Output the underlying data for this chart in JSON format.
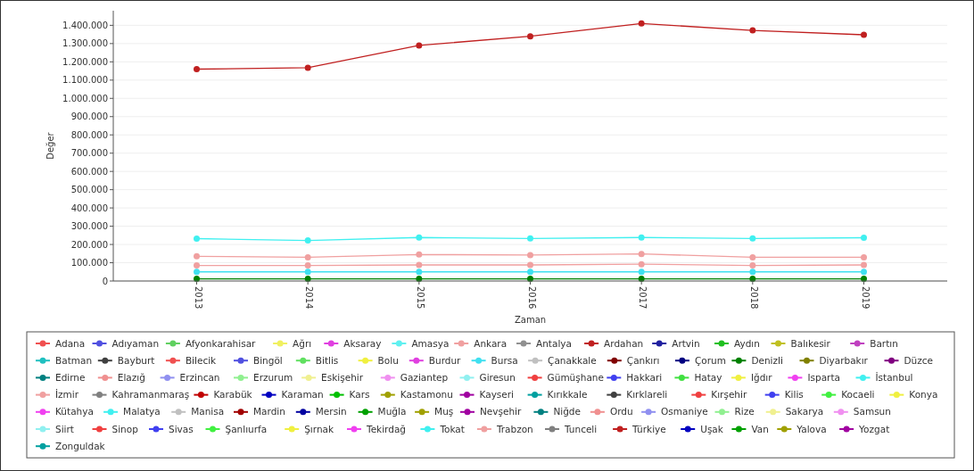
{
  "chart_data": {
    "type": "line",
    "xlabel": "Zaman",
    "ylabel": "Değer",
    "categories": [
      "2013",
      "2014",
      "2015",
      "2016",
      "2017",
      "2018",
      "2019"
    ],
    "ylim": [
      0,
      1480000
    ],
    "yticks": [
      0,
      {
        "value": 100000,
        "label": "100.000"
      },
      {
        "value": 200000,
        "label": "200.000"
      },
      {
        "value": 300000,
        "label": "300.000"
      },
      {
        "value": 400000,
        "label": "400.000"
      },
      {
        "value": 500000,
        "label": "500.000"
      },
      {
        "value": 600000,
        "label": "600.000"
      },
      {
        "value": 700000,
        "label": "700.000"
      },
      {
        "value": 800000,
        "label": "800.000"
      },
      {
        "value": 900000,
        "label": "900.000"
      },
      {
        "value": 1000000,
        "label": "1.000.000"
      },
      {
        "value": 1100000,
        "label": "1.100.000"
      },
      {
        "value": 1200000,
        "label": "1.200.000"
      },
      {
        "value": 1300000,
        "label": "1.300.000"
      },
      {
        "value": 1400000,
        "label": "1.400.000"
      }
    ],
    "grid": "y",
    "legend": "bottom",
    "marker": "circle",
    "series": [
      {
        "name": "Adana",
        "color": "#f05050",
        "values": [
          null,
          null,
          null,
          null,
          null,
          null,
          null
        ]
      },
      {
        "name": "Adıyaman",
        "color": "#5050e0",
        "values": [
          null,
          null,
          null,
          null,
          null,
          null,
          null
        ]
      },
      {
        "name": "Afyonkarahisar",
        "color": "#60d060",
        "values": [
          null,
          null,
          null,
          null,
          null,
          null,
          null
        ]
      },
      {
        "name": "Ağrı",
        "color": "#f0f060",
        "values": [
          null,
          null,
          null,
          null,
          null,
          null,
          null
        ]
      },
      {
        "name": "Aksaray",
        "color": "#e040e0",
        "values": [
          null,
          null,
          null,
          null,
          null,
          null,
          null
        ]
      },
      {
        "name": "Amasya",
        "color": "#60f0f0",
        "values": [
          null,
          null,
          null,
          null,
          null,
          null,
          null
        ]
      },
      {
        "name": "Ankara",
        "color": "#f0a0a0",
        "values": [
          135000,
          130000,
          145000,
          142000,
          148000,
          130000,
          130000
        ]
      },
      {
        "name": "Antalya",
        "color": "#909090",
        "values": [
          null,
          null,
          null,
          null,
          null,
          null,
          null
        ]
      },
      {
        "name": "Ardahan",
        "color": "#c02020",
        "values": [
          null,
          null,
          null,
          null,
          null,
          null,
          null
        ]
      },
      {
        "name": "Artvin",
        "color": "#2020a0",
        "values": [
          null,
          null,
          null,
          null,
          null,
          null,
          null
        ]
      },
      {
        "name": "Aydın",
        "color": "#20c020",
        "values": [
          null,
          null,
          null,
          null,
          null,
          null,
          null
        ]
      },
      {
        "name": "Balıkesir",
        "color": "#c0c020",
        "values": [
          null,
          null,
          null,
          null,
          null,
          null,
          null
        ]
      },
      {
        "name": "Bartın",
        "color": "#c040c0",
        "values": [
          null,
          null,
          null,
          null,
          null,
          null,
          null
        ]
      },
      {
        "name": "Batman",
        "color": "#20c0c0",
        "values": [
          null,
          null,
          null,
          null,
          null,
          null,
          null
        ]
      },
      {
        "name": "Bayburt",
        "color": "#404040",
        "values": [
          null,
          null,
          null,
          null,
          null,
          null,
          null
        ]
      },
      {
        "name": "Bilecik",
        "color": "#f05050",
        "values": [
          null,
          null,
          null,
          null,
          null,
          null,
          null
        ]
      },
      {
        "name": "Bingöl",
        "color": "#5050e0",
        "values": [
          null,
          null,
          null,
          null,
          null,
          null,
          null
        ]
      },
      {
        "name": "Bitlis",
        "color": "#60e060",
        "values": [
          null,
          null,
          null,
          null,
          null,
          null,
          null
        ]
      },
      {
        "name": "Bolu",
        "color": "#f0f040",
        "values": [
          null,
          null,
          null,
          null,
          null,
          null,
          null
        ]
      },
      {
        "name": "Burdur",
        "color": "#e040e0",
        "values": [
          null,
          null,
          null,
          null,
          null,
          null,
          null
        ]
      },
      {
        "name": "Bursa",
        "color": "#40e0f0",
        "values": [
          50000,
          50000,
          50000,
          50000,
          50000,
          50000,
          50000
        ]
      },
      {
        "name": "Çanakkale",
        "color": "#c0c0c0",
        "values": [
          null,
          null,
          null,
          null,
          null,
          null,
          null
        ]
      },
      {
        "name": "Çankırı",
        "color": "#800000",
        "values": [
          null,
          null,
          null,
          null,
          null,
          null,
          null
        ]
      },
      {
        "name": "Çorum",
        "color": "#000080",
        "values": [
          null,
          null,
          null,
          null,
          null,
          null,
          null
        ]
      },
      {
        "name": "Denizli",
        "color": "#008000",
        "values": [
          12000,
          12000,
          12000,
          12000,
          12000,
          12000,
          12000
        ]
      },
      {
        "name": "Diyarbakır",
        "color": "#808000",
        "values": [
          null,
          null,
          null,
          null,
          null,
          null,
          null
        ]
      },
      {
        "name": "Düzce",
        "color": "#800080",
        "values": [
          null,
          null,
          null,
          null,
          null,
          null,
          null
        ]
      },
      {
        "name": "Edirne",
        "color": "#008080",
        "values": [
          null,
          null,
          null,
          null,
          null,
          null,
          null
        ]
      },
      {
        "name": "Elazığ",
        "color": "#f09090",
        "values": [
          null,
          null,
          null,
          null,
          null,
          null,
          null
        ]
      },
      {
        "name": "Erzincan",
        "color": "#9090f0",
        "values": [
          null,
          null,
          null,
          null,
          null,
          null,
          null
        ]
      },
      {
        "name": "Erzurum",
        "color": "#90f090",
        "values": [
          null,
          null,
          null,
          null,
          null,
          null,
          null
        ]
      },
      {
        "name": "Eskişehir",
        "color": "#f0f090",
        "values": [
          null,
          null,
          null,
          null,
          null,
          null,
          null
        ]
      },
      {
        "name": "Gaziantep",
        "color": "#f090f0",
        "values": [
          null,
          null,
          null,
          null,
          null,
          null,
          null
        ]
      },
      {
        "name": "Giresun",
        "color": "#90f0f0",
        "values": [
          null,
          null,
          null,
          null,
          null,
          null,
          null
        ]
      },
      {
        "name": "Gümüşhane",
        "color": "#f04040",
        "values": [
          null,
          null,
          null,
          null,
          null,
          null,
          null
        ]
      },
      {
        "name": "Hakkari",
        "color": "#4040f0",
        "values": [
          null,
          null,
          null,
          null,
          null,
          null,
          null
        ]
      },
      {
        "name": "Hatay",
        "color": "#40e040",
        "values": [
          null,
          null,
          null,
          null,
          null,
          null,
          null
        ]
      },
      {
        "name": "Iğdır",
        "color": "#f0f040",
        "values": [
          null,
          null,
          null,
          null,
          null,
          null,
          null
        ]
      },
      {
        "name": "Isparta",
        "color": "#f040f0",
        "values": [
          null,
          null,
          null,
          null,
          null,
          null,
          null
        ]
      },
      {
        "name": "İstanbul",
        "color": "#40f0f0",
        "values": [
          232000,
          222000,
          238000,
          233000,
          238000,
          233000,
          237000
        ]
      },
      {
        "name": "İzmir",
        "color": "#f0a0a0",
        "values": [
          85000,
          85000,
          88000,
          88000,
          92000,
          85000,
          88000
        ]
      },
      {
        "name": "Kahramanmaraş",
        "color": "#808080",
        "values": [
          null,
          null,
          null,
          null,
          null,
          null,
          null
        ]
      },
      {
        "name": "Karabük",
        "color": "#c00000",
        "values": [
          null,
          null,
          null,
          null,
          null,
          null,
          null
        ]
      },
      {
        "name": "Karaman",
        "color": "#0000c0",
        "values": [
          null,
          null,
          null,
          null,
          null,
          null,
          null
        ]
      },
      {
        "name": "Kars",
        "color": "#00c000",
        "values": [
          null,
          null,
          null,
          null,
          null,
          null,
          null
        ]
      },
      {
        "name": "Kastamonu",
        "color": "#a0a000",
        "values": [
          null,
          null,
          null,
          null,
          null,
          null,
          null
        ]
      },
      {
        "name": "Kayseri",
        "color": "#a000a0",
        "values": [
          null,
          null,
          null,
          null,
          null,
          null,
          null
        ]
      },
      {
        "name": "Kırıkkale",
        "color": "#00a0a0",
        "values": [
          null,
          null,
          null,
          null,
          null,
          null,
          null
        ]
      },
      {
        "name": "Kırklareli",
        "color": "#404040",
        "values": [
          null,
          null,
          null,
          null,
          null,
          null,
          null
        ]
      },
      {
        "name": "Kırşehir",
        "color": "#f04040",
        "values": [
          null,
          null,
          null,
          null,
          null,
          null,
          null
        ]
      },
      {
        "name": "Kilis",
        "color": "#4040f0",
        "values": [
          null,
          null,
          null,
          null,
          null,
          null,
          null
        ]
      },
      {
        "name": "Kocaeli",
        "color": "#40f040",
        "values": [
          null,
          null,
          null,
          null,
          null,
          null,
          null
        ]
      },
      {
        "name": "Konya",
        "color": "#f0f040",
        "values": [
          null,
          null,
          null,
          null,
          null,
          null,
          null
        ]
      },
      {
        "name": "Kütahya",
        "color": "#f040f0",
        "values": [
          null,
          null,
          null,
          null,
          null,
          null,
          null
        ]
      },
      {
        "name": "Malatya",
        "color": "#40f0f0",
        "values": [
          null,
          null,
          null,
          null,
          null,
          null,
          null
        ]
      },
      {
        "name": "Manisa",
        "color": "#c0c0c0",
        "values": [
          null,
          null,
          null,
          null,
          null,
          null,
          null
        ]
      },
      {
        "name": "Mardin",
        "color": "#a00000",
        "values": [
          null,
          null,
          null,
          null,
          null,
          null,
          null
        ]
      },
      {
        "name": "Mersin",
        "color": "#0000a0",
        "values": [
          null,
          null,
          null,
          null,
          null,
          null,
          null
        ]
      },
      {
        "name": "Muğla",
        "color": "#00a000",
        "values": [
          null,
          null,
          null,
          null,
          null,
          null,
          null
        ]
      },
      {
        "name": "Muş",
        "color": "#a0a000",
        "values": [
          null,
          null,
          null,
          null,
          null,
          null,
          null
        ]
      },
      {
        "name": "Nevşehir",
        "color": "#a000a0",
        "values": [
          null,
          null,
          null,
          null,
          null,
          null,
          null
        ]
      },
      {
        "name": "Niğde",
        "color": "#008080",
        "values": [
          null,
          null,
          null,
          null,
          null,
          null,
          null
        ]
      },
      {
        "name": "Ordu",
        "color": "#f09090",
        "values": [
          null,
          null,
          null,
          null,
          null,
          null,
          null
        ]
      },
      {
        "name": "Osmaniye",
        "color": "#9090f0",
        "values": [
          null,
          null,
          null,
          null,
          null,
          null,
          null
        ]
      },
      {
        "name": "Rize",
        "color": "#90f090",
        "values": [
          null,
          null,
          null,
          null,
          null,
          null,
          null
        ]
      },
      {
        "name": "Sakarya",
        "color": "#f0f090",
        "values": [
          null,
          null,
          null,
          null,
          null,
          null,
          null
        ]
      },
      {
        "name": "Samsun",
        "color": "#f090f0",
        "values": [
          null,
          null,
          null,
          null,
          null,
          null,
          null
        ]
      },
      {
        "name": "Siirt",
        "color": "#90f0f0",
        "values": [
          null,
          null,
          null,
          null,
          null,
          null,
          null
        ]
      },
      {
        "name": "Sinop",
        "color": "#f04040",
        "values": [
          null,
          null,
          null,
          null,
          null,
          null,
          null
        ]
      },
      {
        "name": "Sivas",
        "color": "#4040f0",
        "values": [
          null,
          null,
          null,
          null,
          null,
          null,
          null
        ]
      },
      {
        "name": "Şanlıurfa",
        "color": "#40f040",
        "values": [
          null,
          null,
          null,
          null,
          null,
          null,
          null
        ]
      },
      {
        "name": "Şırnak",
        "color": "#f0f040",
        "values": [
          null,
          null,
          null,
          null,
          null,
          null,
          null
        ]
      },
      {
        "name": "Tekirdağ",
        "color": "#f040f0",
        "values": [
          null,
          null,
          null,
          null,
          null,
          null,
          null
        ]
      },
      {
        "name": "Tokat",
        "color": "#40f0f0",
        "values": [
          null,
          null,
          null,
          null,
          null,
          null,
          null
        ]
      },
      {
        "name": "Trabzon",
        "color": "#f0a0a0",
        "values": [
          null,
          null,
          null,
          null,
          null,
          null,
          null
        ]
      },
      {
        "name": "Tunceli",
        "color": "#808080",
        "values": [
          null,
          null,
          null,
          null,
          null,
          null,
          null
        ]
      },
      {
        "name": "Türkiye",
        "color": "#c02020",
        "values": [
          1160000,
          1168000,
          1290000,
          1340000,
          1410000,
          1372000,
          1348000
        ]
      },
      {
        "name": "Uşak",
        "color": "#0000c0",
        "values": [
          null,
          null,
          null,
          null,
          null,
          null,
          null
        ]
      },
      {
        "name": "Van",
        "color": "#00a000",
        "values": [
          null,
          null,
          null,
          null,
          null,
          null,
          null
        ]
      },
      {
        "name": "Yalova",
        "color": "#a0a000",
        "values": [
          null,
          null,
          null,
          null,
          null,
          null,
          null
        ]
      },
      {
        "name": "Yozgat",
        "color": "#a000a0",
        "values": [
          null,
          null,
          null,
          null,
          null,
          null,
          null
        ]
      },
      {
        "name": "Zonguldak",
        "color": "#00a0a0",
        "values": [
          null,
          null,
          null,
          null,
          null,
          null,
          null
        ]
      }
    ]
  }
}
